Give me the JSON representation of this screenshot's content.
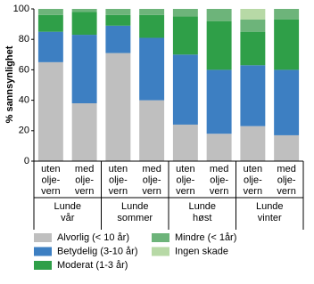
{
  "chart_data": {
    "type": "bar",
    "stacked": true,
    "y_label": "% sannsynlighet",
    "categories": [
      [
        "uten",
        "olje-",
        "vern"
      ],
      [
        "med",
        "olje-",
        "vern"
      ],
      [
        "uten",
        "olje-",
        "vern"
      ],
      [
        "med",
        "olje-",
        "vern"
      ],
      [
        "uten",
        "olje-",
        "vern"
      ],
      [
        "med",
        "olje-",
        "vern"
      ],
      [
        "uten",
        "olje-",
        "vern"
      ],
      [
        "med",
        "olje-",
        "vern"
      ]
    ],
    "groups": [
      [
        "Lunde",
        "vår"
      ],
      [
        "Lunde",
        "sommer"
      ],
      [
        "Lunde",
        "høst"
      ],
      [
        "Lunde",
        "vinter"
      ]
    ],
    "series": [
      {
        "name": "Alvorlig (< 10 år)",
        "color": "#bfbfbf",
        "values": [
          65,
          38,
          71,
          40,
          24,
          18,
          23,
          17
        ]
      },
      {
        "name": "Betydelig (3-10 år)",
        "color": "#3d7fc2",
        "values": [
          20,
          45,
          18,
          41,
          46,
          42,
          40,
          43
        ]
      },
      {
        "name": "Moderat (1-3 år)",
        "color": "#2f9f48",
        "values": [
          11,
          15,
          7,
          15,
          25,
          32,
          22,
          33
        ]
      },
      {
        "name": "Mindre (< 1år)",
        "color": "#6db47a",
        "values": [
          4,
          2,
          4,
          4,
          5,
          8,
          8,
          7
        ]
      },
      {
        "name": "Ingen skade",
        "color": "#b7d9a6",
        "values": [
          0,
          0,
          0,
          0,
          0,
          0,
          7,
          0
        ]
      }
    ],
    "ylim": [
      0,
      100
    ],
    "yticks": [
      0,
      20,
      40,
      60,
      80,
      100
    ],
    "grid": false
  }
}
